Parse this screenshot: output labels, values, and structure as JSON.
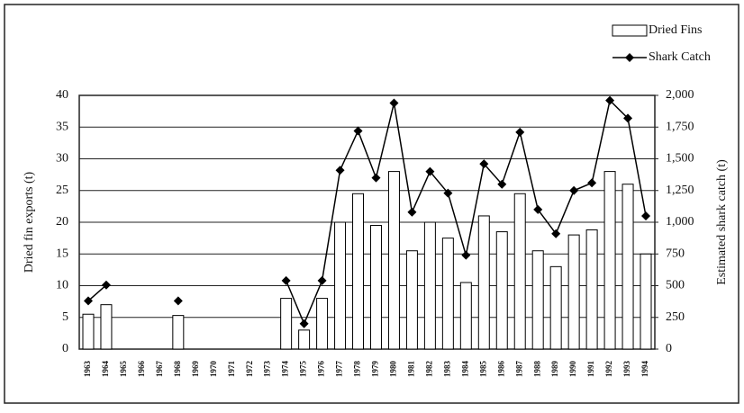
{
  "chart_data": {
    "type": "bar-line",
    "categories": [
      "1963",
      "1964",
      "1965",
      "1966",
      "1967",
      "1968",
      "1969",
      "1970",
      "1971",
      "1972",
      "1973",
      "1974",
      "1975",
      "1976",
      "1977",
      "1978",
      "1979",
      "1980",
      "1981",
      "1982",
      "1983",
      "1984",
      "1985",
      "1986",
      "1987",
      "1988",
      "1989",
      "1990",
      "1991",
      "1992",
      "1993",
      "1994"
    ],
    "series": [
      {
        "name": "Dried Fins",
        "type": "bar",
        "color": "#ffffff",
        "stroke": "#000000",
        "values": [
          5.5,
          7,
          null,
          null,
          null,
          5.3,
          null,
          null,
          null,
          null,
          null,
          8,
          3,
          8,
          20,
          24.5,
          19.5,
          28,
          15.5,
          20,
          17.5,
          10.5,
          21,
          18.5,
          24.5,
          15.5,
          13,
          18,
          18.8,
          28,
          26,
          15
        ]
      },
      {
        "name": "Shark Catch",
        "type": "line",
        "axis": "y2",
        "color": "#000000",
        "values": [
          380,
          505,
          null,
          null,
          null,
          380,
          null,
          null,
          null,
          null,
          null,
          540,
          200,
          540,
          1410,
          1720,
          1350,
          1940,
          1080,
          1400,
          1230,
          740,
          1460,
          1300,
          1710,
          1100,
          910,
          1250,
          1310,
          1960,
          1820,
          1050
        ]
      }
    ],
    "y_label": "Dried fin exports (t)",
    "y2_label": "Estimated shark catch (t)",
    "ylim": [
      0,
      40
    ],
    "yticks": [
      0,
      5,
      10,
      15,
      20,
      25,
      30,
      35,
      40
    ],
    "y2lim": [
      0,
      2000
    ],
    "y2ticks": [
      0,
      250,
      500,
      750,
      {
        "value": 1000,
        "label": "1,000"
      },
      {
        "value": 1250,
        "label": "1,250"
      },
      {
        "value": 1500,
        "label": "1,500"
      },
      {
        "value": 1750,
        "label": "1,750"
      },
      {
        "value": 2000,
        "label": "2,000"
      }
    ],
    "grid": true,
    "legend": "top-right"
  }
}
